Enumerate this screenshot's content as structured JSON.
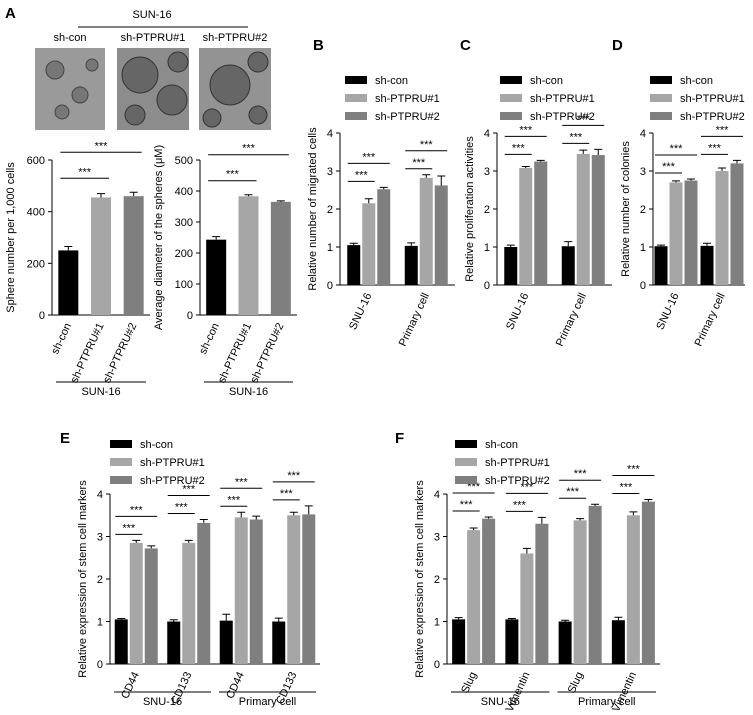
{
  "panel_letters": [
    "A",
    "B",
    "C",
    "D",
    "E",
    "F"
  ],
  "image_panel": {
    "group": "SUN-16",
    "labels": [
      "sh-con",
      "sh-PTPRU#1",
      "sh-PTPRU#2"
    ]
  },
  "chart_data": [
    {
      "type": "bar",
      "ylabel": "Sphere number per 1,000 cells",
      "categories": [
        "sh-con",
        "sh-PTPRU#1",
        "sh-PTPRU#2"
      ],
      "values": [
        250,
        455,
        460
      ],
      "errors": [
        15,
        15,
        15
      ],
      "colors": [
        "#000000",
        "#a6a6a6",
        "#7f7f7f"
      ],
      "ylim": [
        0,
        600
      ],
      "yticks": [
        0,
        200,
        400,
        600
      ],
      "groups": [
        "SUN-16"
      ],
      "annotations": [
        "***",
        "***"
      ]
    },
    {
      "type": "bar",
      "ylabel": "Average diameter of the spheres (μM)",
      "categories": [
        "sh-con",
        "sh-PTPRU#1",
        "sh-PTPRU#2"
      ],
      "values": [
        243,
        383,
        365
      ],
      "errors": [
        10,
        5,
        3
      ],
      "colors": [
        "#000000",
        "#a6a6a6",
        "#7f7f7f"
      ],
      "ylim": [
        0,
        500
      ],
      "yticks": [
        0,
        100,
        200,
        300,
        400,
        500
      ],
      "groups": [
        "SUN-16"
      ],
      "annotations": [
        "***",
        "***"
      ]
    },
    {
      "type": "grouped_bar",
      "ylabel": "Relative number of migrated cells",
      "categories": [
        "SNU-16",
        "Primary cell"
      ],
      "series": [
        {
          "name": "sh-con",
          "color": "#000000",
          "values": [
            1.05,
            1.03
          ],
          "errors": [
            0.05,
            0.08
          ]
        },
        {
          "name": "sh-PTPRU#1",
          "color": "#a6a6a6",
          "values": [
            2.15,
            2.82
          ],
          "errors": [
            0.12,
            0.08
          ]
        },
        {
          "name": "sh-PTPRU#2",
          "color": "#7f7f7f",
          "values": [
            2.52,
            2.62
          ],
          "errors": [
            0.05,
            0.25
          ]
        }
      ],
      "ylim": [
        0,
        4
      ],
      "yticks": [
        0,
        1,
        2,
        3,
        4
      ],
      "annotations": [
        "***",
        "***",
        "***",
        "***"
      ]
    },
    {
      "type": "grouped_bar",
      "ylabel": "Relative proliferation activities",
      "categories": [
        "SNU-16",
        "Primary cell"
      ],
      "series": [
        {
          "name": "sh-con",
          "color": "#000000",
          "values": [
            1.0,
            1.02
          ],
          "errors": [
            0.05,
            0.12
          ]
        },
        {
          "name": "sh-PTPRU#1",
          "color": "#a6a6a6",
          "values": [
            3.08,
            3.45
          ],
          "errors": [
            0.04,
            0.1
          ]
        },
        {
          "name": "sh-PTPRU#2",
          "color": "#7f7f7f",
          "values": [
            3.25,
            3.42
          ],
          "errors": [
            0.03,
            0.15
          ]
        }
      ],
      "ylim": [
        0,
        4
      ],
      "yticks": [
        0,
        1,
        2,
        3,
        4
      ],
      "annotations": [
        "***",
        "***",
        "***",
        "***"
      ]
    },
    {
      "type": "grouped_bar",
      "ylabel": "Relative number of colonies",
      "categories": [
        "SNU-16",
        "Primary cell"
      ],
      "series": [
        {
          "name": "sh-con",
          "color": "#000000",
          "values": [
            1.02,
            1.03
          ],
          "errors": [
            0.03,
            0.07
          ]
        },
        {
          "name": "sh-PTPRU#1",
          "color": "#a6a6a6",
          "values": [
            2.7,
            3.0
          ],
          "errors": [
            0.04,
            0.08
          ]
        },
        {
          "name": "sh-PTPRU#2",
          "color": "#7f7f7f",
          "values": [
            2.75,
            3.2
          ],
          "errors": [
            0.04,
            0.08
          ]
        }
      ],
      "ylim": [
        0,
        4
      ],
      "yticks": [
        0,
        1,
        2,
        3,
        4
      ],
      "annotations": [
        "***",
        "***",
        "***",
        "***"
      ]
    },
    {
      "type": "grouped_bar",
      "ylabel": "Relative expression of stem cell markers",
      "categories": [
        "CD44",
        "CD133",
        "CD44",
        "CD133"
      ],
      "series": [
        {
          "name": "sh-con",
          "color": "#000000",
          "values": [
            1.05,
            1.0,
            1.02,
            1.0
          ],
          "errors": [
            0.02,
            0.04,
            0.15,
            0.08
          ]
        },
        {
          "name": "sh-PTPRU#1",
          "color": "#a6a6a6",
          "values": [
            2.85,
            2.85,
            3.45,
            3.5
          ],
          "errors": [
            0.06,
            0.06,
            0.12,
            0.07
          ]
        },
        {
          "name": "sh-PTPRU#2",
          "color": "#7f7f7f",
          "values": [
            2.72,
            3.32,
            3.4,
            3.52
          ],
          "errors": [
            0.06,
            0.08,
            0.08,
            0.2
          ]
        }
      ],
      "ylim": [
        0,
        4
      ],
      "yticks": [
        0,
        1,
        2,
        3,
        4
      ],
      "groups": [
        "SNU-16",
        "Primary cell"
      ],
      "annotations": [
        "***",
        "***",
        "***",
        "***",
        "***",
        "***",
        "***",
        "***"
      ]
    },
    {
      "type": "grouped_bar",
      "ylabel": "Relative expression of stem cell markers",
      "categories": [
        "Slug",
        "Vimentin",
        "Slug",
        "Vimentin"
      ],
      "series": [
        {
          "name": "sh-con",
          "color": "#000000",
          "values": [
            1.05,
            1.05,
            1.0,
            1.03
          ],
          "errors": [
            0.04,
            0.02,
            0.03,
            0.07
          ]
        },
        {
          "name": "sh-PTPRU#1",
          "color": "#a6a6a6",
          "values": [
            3.15,
            2.6,
            3.38,
            3.5
          ],
          "errors": [
            0.05,
            0.12,
            0.04,
            0.08
          ]
        },
        {
          "name": "sh-PTPRU#2",
          "color": "#7f7f7f",
          "values": [
            3.42,
            3.3,
            3.72,
            3.82
          ],
          "errors": [
            0.04,
            0.15,
            0.04,
            0.05
          ]
        }
      ],
      "ylim": [
        0,
        4
      ],
      "yticks": [
        0,
        1,
        2,
        3,
        4
      ],
      "groups": [
        "SNU-16",
        "Primary cell"
      ],
      "annotations": [
        "***",
        "***",
        "***",
        "***",
        "***",
        "***",
        "***",
        "***"
      ]
    }
  ]
}
